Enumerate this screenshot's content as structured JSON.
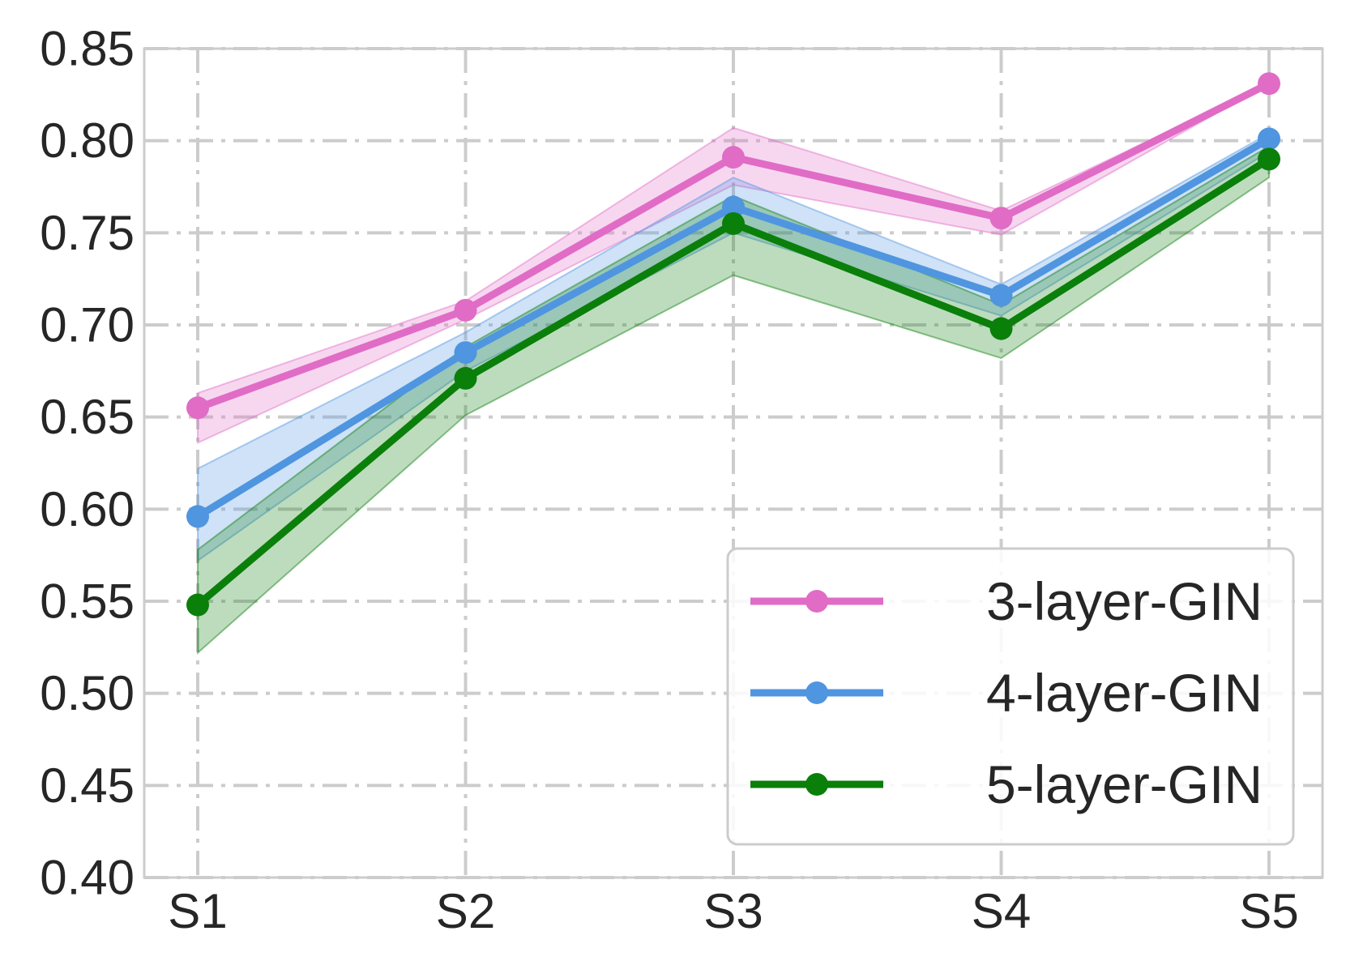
{
  "chart_data": {
    "type": "line",
    "title": "",
    "xlabel": "",
    "ylabel": "",
    "categories": [
      "S1",
      "S2",
      "S3",
      "S4",
      "S5"
    ],
    "yticks": [
      "0.40",
      "0.45",
      "0.50",
      "0.55",
      "0.60",
      "0.65",
      "0.70",
      "0.75",
      "0.80",
      "0.85"
    ],
    "ylim": [
      0.4,
      0.85
    ],
    "grid": true,
    "legend_position": "lower-right",
    "series": [
      {
        "name": "3-layer-GIN",
        "color": "#e06cc6",
        "values": [
          0.655,
          0.708,
          0.791,
          0.758,
          0.831
        ],
        "lower": [
          0.636,
          0.703,
          0.776,
          0.749,
          0.831
        ],
        "upper": [
          0.663,
          0.713,
          0.807,
          0.762,
          0.831
        ]
      },
      {
        "name": "4-layer-GIN",
        "color": "#4f95e0",
        "values": [
          0.596,
          0.685,
          0.764,
          0.716,
          0.801
        ],
        "lower": [
          0.572,
          0.675,
          0.75,
          0.705,
          0.794
        ],
        "upper": [
          0.622,
          0.696,
          0.78,
          0.722,
          0.804
        ]
      },
      {
        "name": "5-layer-GIN",
        "color": "#0a7f0a",
        "values": [
          0.548,
          0.671,
          0.755,
          0.698,
          0.79
        ],
        "lower": [
          0.522,
          0.651,
          0.727,
          0.682,
          0.78
        ],
        "upper": [
          0.578,
          0.688,
          0.77,
          0.711,
          0.797
        ]
      }
    ]
  }
}
